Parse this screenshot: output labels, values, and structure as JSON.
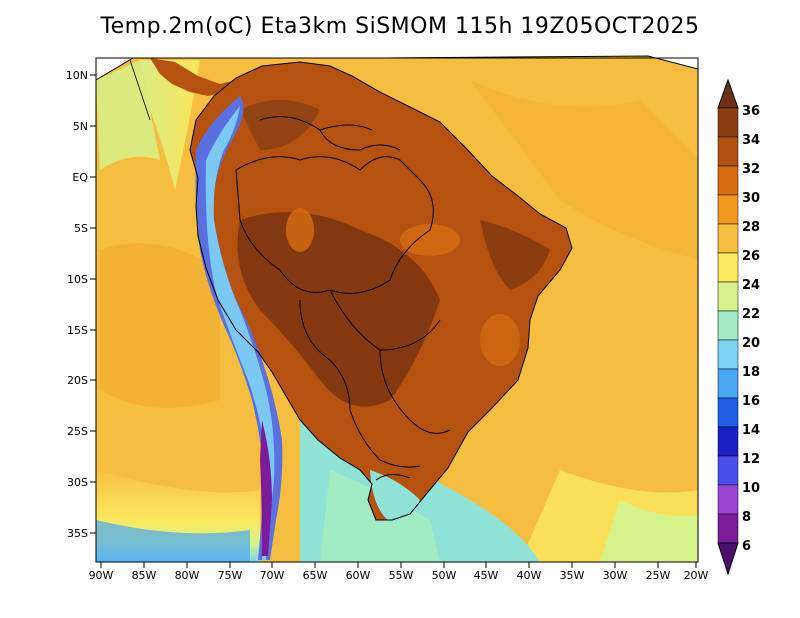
{
  "title": "Temp.2m(oC) Eta3km SiSMOM 115h 19Z05OCT2025",
  "lat_labels": [
    "10N",
    "5N",
    "EQ",
    "5S",
    "10S",
    "15S",
    "20S",
    "25S",
    "30S",
    "35S"
  ],
  "lon_labels": [
    "90W",
    "85W",
    "80W",
    "75W",
    "70W",
    "65W",
    "60W",
    "55W",
    "50W",
    "45W",
    "40W",
    "35W",
    "30W",
    "25W",
    "20W"
  ],
  "colorbar": {
    "labels": [
      "36",
      "34",
      "32",
      "30",
      "28",
      "26",
      "24",
      "22",
      "20",
      "18",
      "16",
      "14",
      "12",
      "10",
      "8",
      "6"
    ],
    "colors": [
      "#6a3012",
      "#8b3e12",
      "#b2520f",
      "#d76e11",
      "#f29a1f",
      "#f7c040",
      "#fbe95e",
      "#d6f28a",
      "#a2ecc4",
      "#7ed3f5",
      "#4aa8f2",
      "#1e5fe6",
      "#1c1ec6",
      "#4b4fea",
      "#9a46d2",
      "#7a1c9c",
      "#4b0f72"
    ]
  },
  "map": {
    "ocean_color": "#f6be3e",
    "ocean_warm_color": "#f4aa2e",
    "land_color": "#b5520f",
    "land_hot_color": "#7a3410",
    "cold_south_color": "#8fe3d6",
    "andes_cold_color": "#5a6fe0"
  }
}
